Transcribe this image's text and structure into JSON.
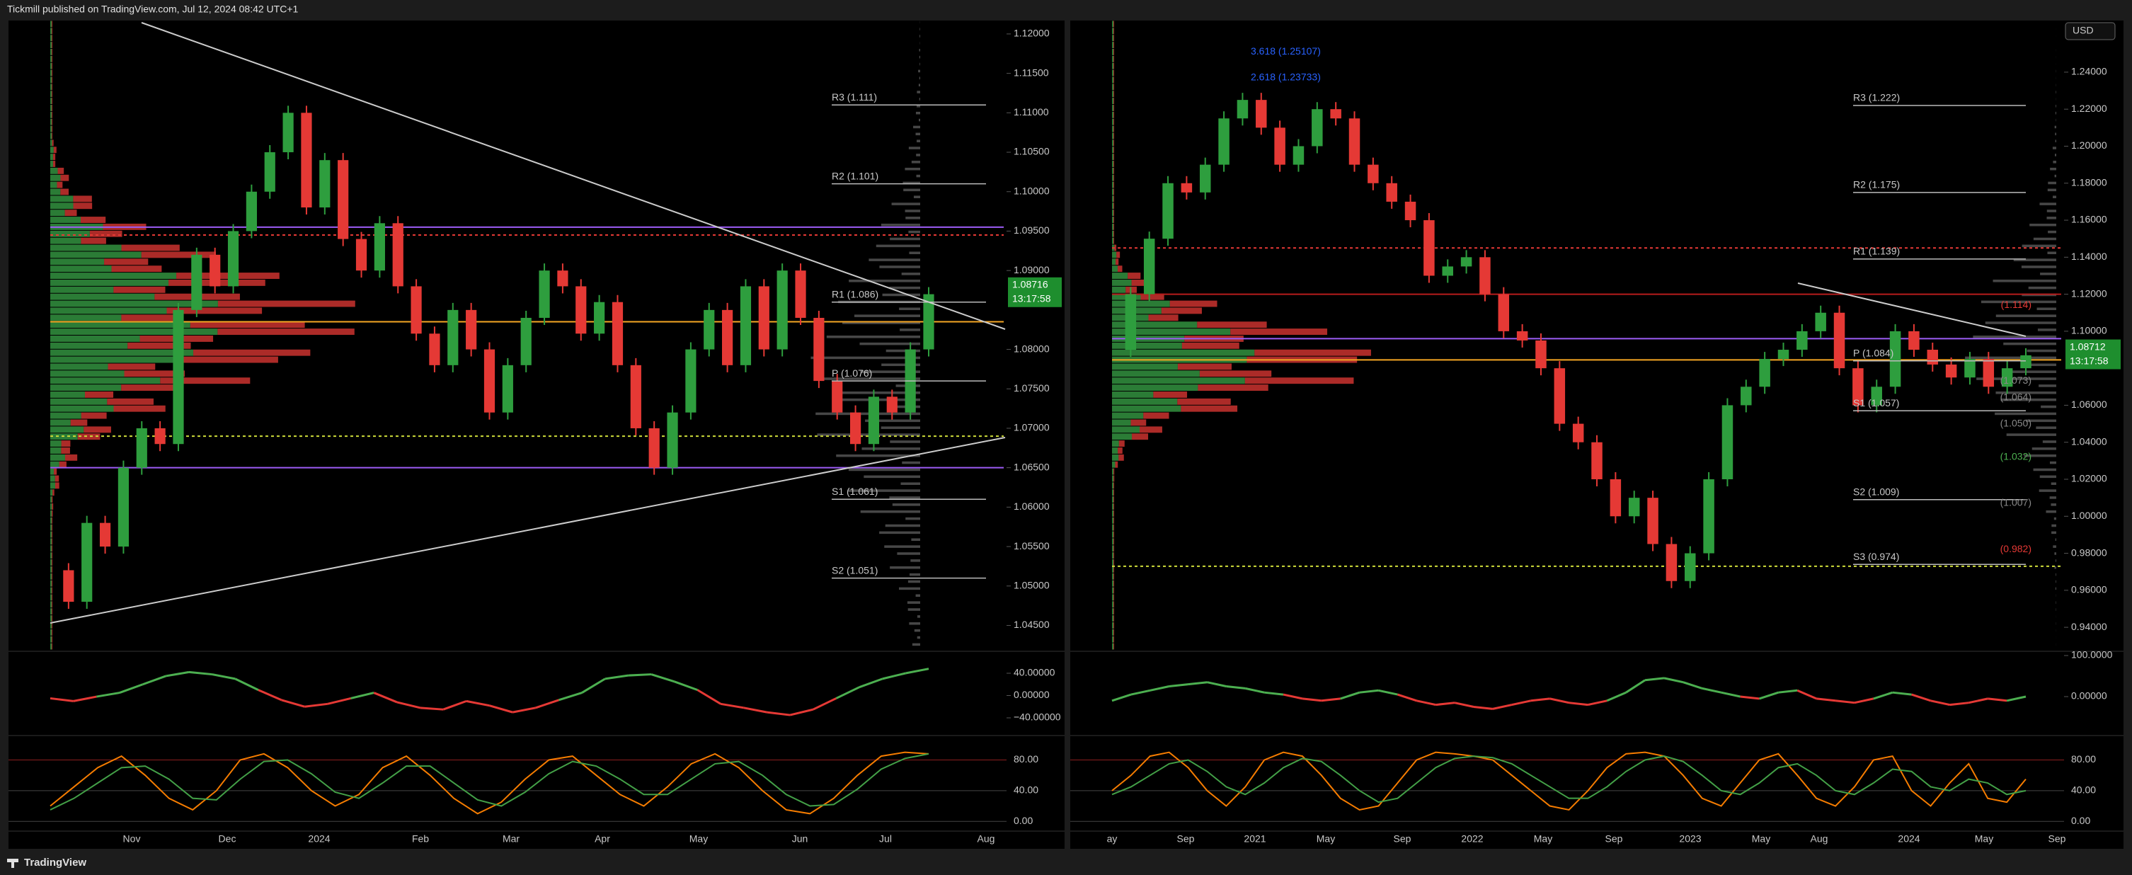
{
  "header": "Tickmill published on TradingView.com, Jul 12, 2024 08:42 UTC+1",
  "footer": "TradingView",
  "chart_data": [
    {
      "type": "candles",
      "color_up": "#2e9e3e",
      "color_down": "#e53935",
      "values": [
        1.052,
        1.048,
        1.058,
        1.055,
        1.065,
        1.07,
        1.068,
        1.085,
        1.092,
        1.088,
        1.095,
        1.1,
        1.105,
        1.11,
        1.098,
        1.104,
        1.094,
        1.09,
        1.096,
        1.088,
        1.082,
        1.078,
        1.085,
        1.08,
        1.072,
        1.078,
        1.084,
        1.09,
        1.088,
        1.082,
        1.086,
        1.078,
        1.07,
        1.065,
        1.072,
        1.08,
        1.085,
        1.078,
        1.088,
        1.08,
        1.09,
        1.084,
        1.076,
        1.072,
        1.068,
        1.074,
        1.072,
        1.08,
        1.087
      ],
      "ylim": [
        1.0419,
        1.1217
      ],
      "yticks": [
        {
          "value": 1.12,
          "label": "1.12000"
        },
        {
          "value": 1.115,
          "label": "1.11500"
        },
        {
          "value": 1.11,
          "label": "1.11000"
        },
        {
          "value": 1.105,
          "label": "1.10500"
        },
        {
          "value": 1.1,
          "label": "1.10000"
        },
        {
          "value": 1.095,
          "label": "1.09500"
        },
        {
          "value": 1.09,
          "label": "1.09000"
        },
        {
          "value": 1.08,
          "label": "1.08000"
        },
        {
          "value": 1.075,
          "label": "1.07500"
        },
        {
          "value": 1.07,
          "label": "1.07000"
        },
        {
          "value": 1.065,
          "label": "1.06500"
        },
        {
          "value": 1.06,
          "label": "1.06000"
        },
        {
          "value": 1.055,
          "label": "1.05500"
        },
        {
          "value": 1.05,
          "label": "1.05000"
        },
        {
          "value": 1.045,
          "label": "1.04500"
        }
      ],
      "xticks": [
        "Nov",
        "Dec",
        "2024",
        "Feb",
        "Mar",
        "Apr",
        "May",
        "Jun",
        "Jul",
        "Aug"
      ],
      "last_price": {
        "value": 1.08716,
        "label": "1.08716",
        "countdown": "13:17:58"
      },
      "pivots": [
        {
          "value": 1.111,
          "label": "R3 (1.111)"
        },
        {
          "value": 1.101,
          "label": "R2 (1.101)"
        },
        {
          "value": 1.086,
          "label": "R1 (1.086)"
        },
        {
          "value": 1.076,
          "label": "P (1.076)"
        },
        {
          "value": 1.061,
          "label": "S1 (1.061)"
        },
        {
          "value": 1.051,
          "label": "S2 (1.051)"
        }
      ],
      "levels": [
        {
          "value": 1.0835,
          "color": "#f5a623",
          "dash": false
        },
        {
          "value": 1.0945,
          "color": "#e53935",
          "dash": true
        },
        {
          "value": 1.069,
          "color": "#cddc39",
          "dash": true
        },
        {
          "value": 1.0955,
          "color": "#9c5cf5",
          "dash": false
        },
        {
          "value": 1.065,
          "color": "#9c5cf5",
          "dash": false
        }
      ],
      "annotations": [],
      "osc": {
        "values": [
          -5,
          -10,
          -2,
          5,
          20,
          35,
          42,
          38,
          30,
          10,
          -8,
          -20,
          -15,
          -5,
          5,
          -12,
          -22,
          -25,
          -10,
          -18,
          -30,
          -22,
          -8,
          5,
          30,
          36,
          38,
          25,
          10,
          -15,
          -22,
          -30,
          -35,
          -25,
          -5,
          15,
          30,
          40,
          48
        ],
        "ylim": [
          -69.2,
          76.8
        ],
        "yticks": [
          {
            "value": 40,
            "label": "40.00000"
          },
          {
            "value": 0,
            "label": "0.00000"
          },
          {
            "value": -40,
            "label": "−40.00000"
          }
        ]
      },
      "stoch": {
        "series": [
          {
            "color": "#f57c00",
            "values": [
              20,
              45,
              70,
              85,
              60,
              30,
              15,
              40,
              80,
              88,
              70,
              40,
              20,
              35,
              70,
              85,
              60,
              30,
              10,
              25,
              55,
              80,
              85,
              60,
              35,
              20,
              45,
              75,
              88,
              70,
              40,
              15,
              10,
              30,
              60,
              85,
              90,
              88
            ]
          },
          {
            "color": "#43a047",
            "values": [
              15,
              30,
              50,
              70,
              72,
              55,
              30,
              28,
              55,
              78,
              80,
              62,
              38,
              30,
              50,
              72,
              72,
              50,
              28,
              20,
              38,
              62,
              78,
              72,
              55,
              35,
              35,
              55,
              75,
              78,
              60,
              35,
              20,
              22,
              42,
              68,
              82,
              88
            ]
          }
        ],
        "ylim": [
          -10.9,
          110
        ],
        "yticks": [
          {
            "value": 80,
            "label": "80.00"
          },
          {
            "value": 40,
            "label": "40.00"
          },
          {
            "value": 0,
            "label": "0.00"
          }
        ]
      }
    },
    {
      "type": "candles",
      "color_up": "#2e9e3e",
      "color_down": "#e53935",
      "currency": "USD",
      "values": [
        1.09,
        1.12,
        1.15,
        1.18,
        1.175,
        1.19,
        1.215,
        1.225,
        1.21,
        1.19,
        1.2,
        1.22,
        1.215,
        1.19,
        1.18,
        1.17,
        1.16,
        1.13,
        1.135,
        1.14,
        1.12,
        1.1,
        1.095,
        1.08,
        1.05,
        1.04,
        1.02,
        1.0,
        1.01,
        0.985,
        0.965,
        0.98,
        1.02,
        1.06,
        1.07,
        1.085,
        1.09,
        1.1,
        1.11,
        1.08,
        1.06,
        1.07,
        1.1,
        1.09,
        1.082,
        1.075,
        1.085,
        1.07,
        1.08,
        1.087
      ],
      "ylim": [
        0.9278,
        1.2679
      ],
      "yticks": [
        {
          "value": 1.24,
          "label": "1.24000"
        },
        {
          "value": 1.22,
          "label": "1.22000"
        },
        {
          "value": 1.2,
          "label": "1.20000"
        },
        {
          "value": 1.18,
          "label": "1.18000"
        },
        {
          "value": 1.16,
          "label": "1.16000"
        },
        {
          "value": 1.14,
          "label": "1.14000"
        },
        {
          "value": 1.12,
          "label": "1.12000"
        },
        {
          "value": 1.1,
          "label": "1.10000"
        },
        {
          "value": 1.06,
          "label": "1.06000"
        },
        {
          "value": 1.04,
          "label": "1.04000"
        },
        {
          "value": 1.02,
          "label": "1.02000"
        },
        {
          "value": 1,
          "label": "1.00000"
        },
        {
          "value": 0.98,
          "label": "0.98000"
        },
        {
          "value": 0.96,
          "label": "0.96000"
        },
        {
          "value": 0.94,
          "label": "0.94000"
        }
      ],
      "xticks": [
        "ay",
        "Sep",
        "2021",
        "May",
        "Sep",
        "2022",
        "May",
        "Sep",
        "2023",
        "May",
        "Aug",
        "2024",
        "May",
        "Sep"
      ],
      "last_price": {
        "value": 1.08712,
        "label": "1.08712",
        "countdown": "13:17:58"
      },
      "pivots": [
        {
          "value": 1.222,
          "label": "R3 (1.222)"
        },
        {
          "value": 1.175,
          "label": "R2 (1.175)"
        },
        {
          "value": 1.139,
          "label": "R1 (1.139)"
        },
        {
          "value": 1.084,
          "label": "P (1.084)"
        },
        {
          "value": 1.057,
          "label": "S1 (1.057)"
        },
        {
          "value": 1.009,
          "label": "S2 (1.009)"
        },
        {
          "value": 0.974,
          "label": "S3 (0.974)"
        }
      ],
      "levels": [
        {
          "value": 1.0845,
          "color": "#f5a623",
          "dash": false
        },
        {
          "value": 1.145,
          "color": "#e53935",
          "dash": true
        },
        {
          "value": 1.12,
          "color": "#b71c1c",
          "dash": false
        },
        {
          "value": 0.973,
          "color": "#cddc39",
          "dash": true
        },
        {
          "value": 1.096,
          "color": "#9c5cf5",
          "dash": false
        }
      ],
      "annotations": [
        {
          "value": 1.114,
          "label": "(1.114)",
          "color": "#e53935"
        },
        {
          "value": 1.073,
          "label": "(1.073)",
          "color": "#888888"
        },
        {
          "value": 1.064,
          "label": "(1.064)",
          "color": "#888888"
        },
        {
          "value": 1.05,
          "label": "(1.050)",
          "color": "#888888"
        },
        {
          "value": 1.032,
          "label": "(1.032)",
          "color": "#4caf50"
        },
        {
          "value": 1.007,
          "label": "(1.007)",
          "color": "#888888"
        },
        {
          "value": 0.982,
          "label": "(0.982)",
          "color": "#e53935"
        },
        {
          "value": 1.251,
          "label": "3.618 (1.25107)",
          "color": "#2962ff"
        },
        {
          "value": 1.237,
          "label": "2.618 (1.23733)",
          "color": "#2962ff"
        }
      ],
      "osc": {
        "values": [
          -10,
          5,
          15,
          25,
          30,
          35,
          25,
          20,
          10,
          5,
          -5,
          -10,
          -5,
          10,
          15,
          5,
          -10,
          -20,
          -15,
          -25,
          -30,
          -20,
          -10,
          -5,
          -15,
          -20,
          -10,
          10,
          40,
          45,
          35,
          20,
          10,
          0,
          -5,
          10,
          15,
          -5,
          -10,
          -15,
          -5,
          10,
          5,
          -10,
          -20,
          -15,
          -5,
          -10,
          0
        ],
        "ylim": [
          -91.4,
          106.9
        ],
        "yticks": [
          {
            "value": 100,
            "label": "100.0000"
          },
          {
            "value": 0,
            "label": "0.00000"
          }
        ]
      },
      "stoch": {
        "series": [
          {
            "color": "#f57c00",
            "values": [
              40,
              60,
              85,
              90,
              70,
              40,
              20,
              45,
              80,
              90,
              85,
              60,
              30,
              15,
              20,
              50,
              80,
              90,
              88,
              85,
              80,
              60,
              40,
              20,
              15,
              40,
              70,
              88,
              90,
              85,
              60,
              30,
              20,
              50,
              80,
              88,
              60,
              30,
              20,
              45,
              80,
              85,
              40,
              20,
              50,
              75,
              30,
              25,
              55
            ]
          },
          {
            "color": "#43a047",
            "values": [
              35,
              45,
              60,
              75,
              80,
              65,
              45,
              35,
              50,
              70,
              82,
              78,
              60,
              40,
              25,
              30,
              50,
              70,
              82,
              85,
              83,
              75,
              60,
              45,
              30,
              30,
              45,
              65,
              80,
              85,
              78,
              60,
              40,
              35,
              50,
              70,
              75,
              60,
              40,
              35,
              50,
              68,
              65,
              45,
              40,
              55,
              50,
              35,
              40
            ]
          }
        ],
        "ylim": [
          -10.9,
          110
        ],
        "yticks": [
          {
            "value": 80,
            "label": "80.00"
          },
          {
            "value": 40,
            "label": "40.00"
          },
          {
            "value": 0,
            "label": "0.00"
          }
        ]
      }
    }
  ]
}
